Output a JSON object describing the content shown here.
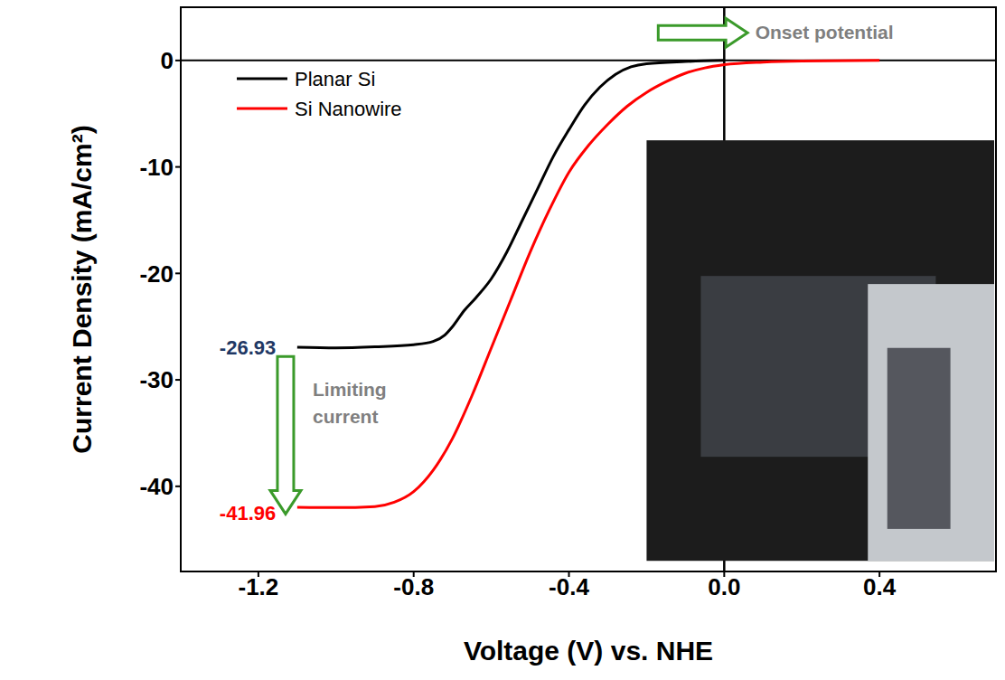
{
  "chart_data": {
    "type": "line",
    "xlabel": "Voltage (V) vs. NHE",
    "ylabel": "Current Density (mA/cm²)",
    "xlim": [
      -1.4,
      0.7
    ],
    "ylim": [
      -48,
      5
    ],
    "xticks": [
      -1.2,
      -0.8,
      -0.4,
      {
        "value": 0,
        "label": "0.0"
      },
      0.4
    ],
    "yticks": [
      0,
      -10,
      -20,
      -30,
      -40
    ],
    "legend": "upper left",
    "series": [
      {
        "name": "Planar Si",
        "color": "#000000",
        "x": [
          -1.1,
          -1.0,
          -0.9,
          -0.8,
          -0.75,
          -0.72,
          -0.7,
          -0.67,
          -0.64,
          -0.6,
          -0.56,
          -0.52,
          -0.48,
          -0.44,
          -0.4,
          -0.36,
          -0.32,
          -0.28,
          -0.24,
          -0.2,
          -0.1,
          0.0
        ],
        "values": [
          -26.93,
          -27.0,
          -26.9,
          -26.7,
          -26.4,
          -25.8,
          -25.0,
          -23.5,
          -22.3,
          -20.5,
          -18.0,
          -15.0,
          -12.0,
          -9.0,
          -6.5,
          -4.2,
          -2.5,
          -1.3,
          -0.6,
          -0.3,
          -0.1,
          0.0
        ]
      },
      {
        "name": "Si Nanowire",
        "color": "#ff0000",
        "x": [
          -1.1,
          -1.0,
          -0.9,
          -0.85,
          -0.8,
          -0.75,
          -0.7,
          -0.65,
          -0.6,
          -0.55,
          -0.5,
          -0.45,
          -0.4,
          -0.35,
          -0.3,
          -0.25,
          -0.2,
          -0.15,
          -0.1,
          -0.05,
          0.0,
          0.1,
          0.2,
          0.4
        ],
        "values": [
          -41.96,
          -42.0,
          -41.9,
          -41.5,
          -40.5,
          -38.5,
          -35.5,
          -31.5,
          -27.0,
          -22.5,
          -18.0,
          -14.0,
          -10.5,
          -8.0,
          -6.0,
          -4.3,
          -3.0,
          -2.0,
          -1.2,
          -0.7,
          -0.4,
          -0.15,
          -0.05,
          0.0
        ]
      }
    ],
    "annotations": {
      "onset": "Onset potential",
      "limiting": "Limiting current",
      "limiting_values": [
        {
          "series": "Planar Si",
          "value": -26.93
        },
        {
          "series": "Si Nanowire",
          "value": -41.96
        }
      ]
    }
  }
}
